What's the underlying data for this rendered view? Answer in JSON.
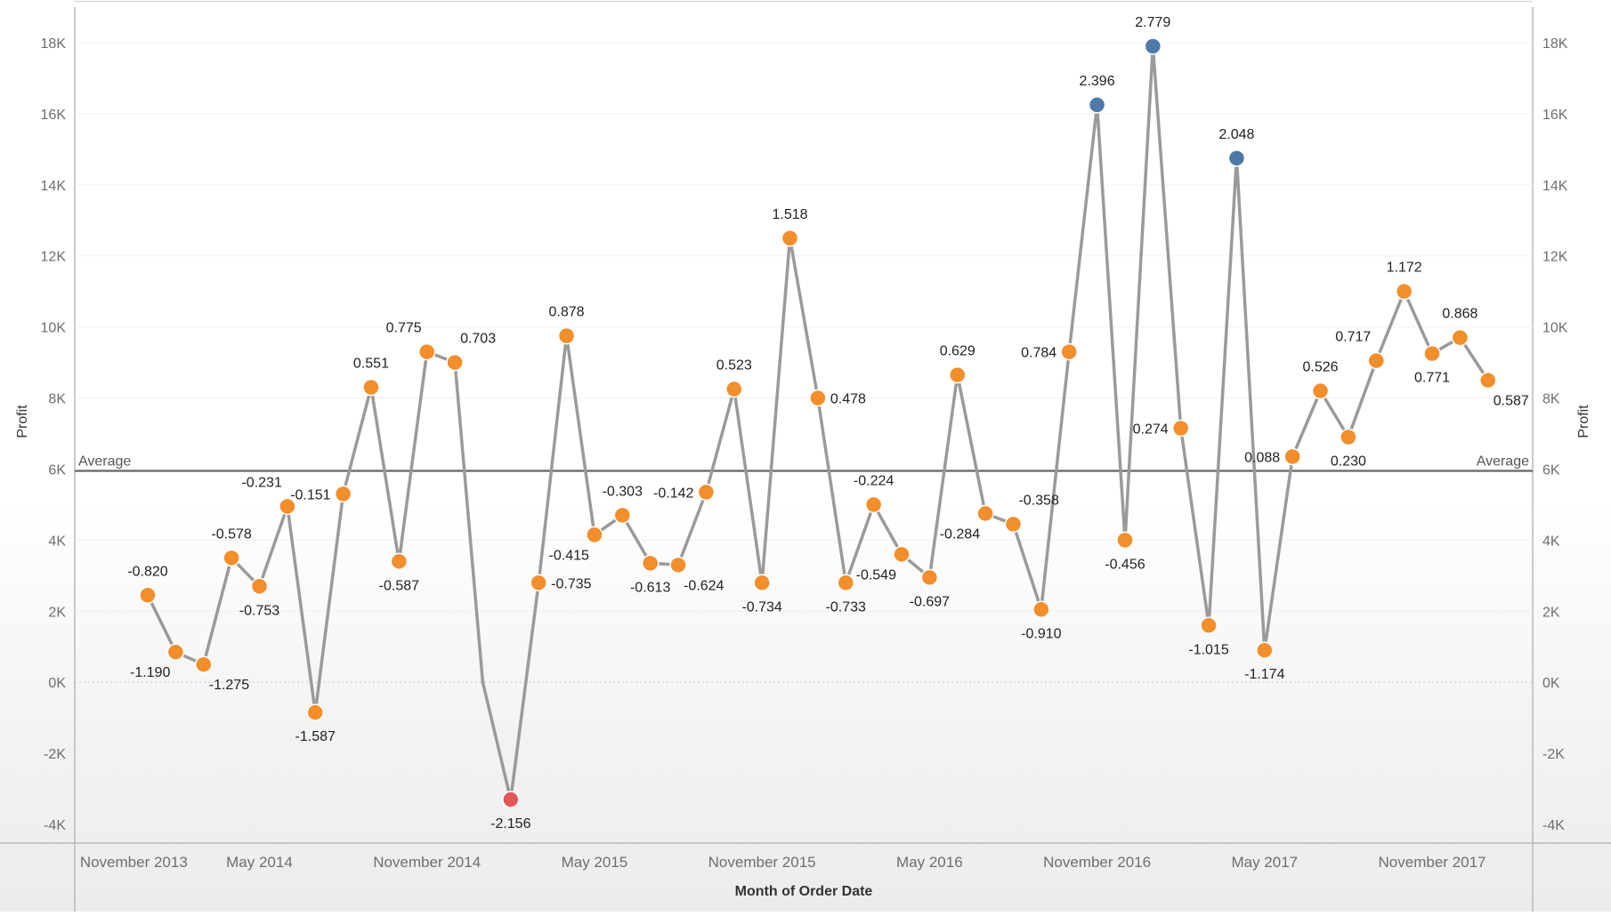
{
  "chart_data": {
    "type": "line",
    "title": "",
    "xlabel": "Month of Order Date",
    "ylabel": "Profit",
    "ylabel_right": "Profit",
    "ylim": [
      -4500,
      18700
    ],
    "y_ticks": [
      {
        "value": -4000,
        "label": "-4K"
      },
      {
        "value": -2000,
        "label": "-2K"
      },
      {
        "value": 0,
        "label": "0K"
      },
      {
        "value": 2000,
        "label": "2K"
      },
      {
        "value": 4000,
        "label": "4K"
      },
      {
        "value": 6000,
        "label": "6K"
      },
      {
        "value": 8000,
        "label": "8K"
      },
      {
        "value": 10000,
        "label": "10K"
      },
      {
        "value": 12000,
        "label": "12K"
      },
      {
        "value": 14000,
        "label": "14K"
      },
      {
        "value": 16000,
        "label": "16K"
      },
      {
        "value": 18000,
        "label": "18K"
      }
    ],
    "x_ticks": [
      {
        "index": -0.5,
        "label": "November 2013"
      },
      {
        "index": 4,
        "label": "May 2014"
      },
      {
        "index": 10,
        "label": "November 2014"
      },
      {
        "index": 16,
        "label": "May 2015"
      },
      {
        "index": 22,
        "label": "November 2015"
      },
      {
        "index": 28,
        "label": "May 2016"
      },
      {
        "index": 34,
        "label": "November 2016"
      },
      {
        "index": 40,
        "label": "May 2017"
      },
      {
        "index": 46,
        "label": "November 2017"
      }
    ],
    "average": {
      "value": 5950,
      "label": "Average"
    },
    "colors": {
      "line": "#9a9a9a",
      "normal": "#f28e2b",
      "high": "#4e79a7",
      "low": "#e15759",
      "average_line": "#555555"
    },
    "points": [
      {
        "value": 2450,
        "label": "-0.820",
        "cls": "normal",
        "pos": "above"
      },
      {
        "value": 850,
        "label": "-1.190",
        "cls": "normal",
        "pos": "belowleft"
      },
      {
        "value": 500,
        "label": "-1.275",
        "cls": "normal",
        "pos": "belowright"
      },
      {
        "value": 3500,
        "label": "-0.578",
        "cls": "normal",
        "pos": "above"
      },
      {
        "value": 2700,
        "label": "-0.753",
        "cls": "normal",
        "pos": "below"
      },
      {
        "value": 4950,
        "label": "-0.231",
        "cls": "normal",
        "pos": "aboveleft"
      },
      {
        "value": -850,
        "label": "-1.587",
        "cls": "normal",
        "pos": "below"
      },
      {
        "value": 5300,
        "label": "-0.151",
        "cls": "normal",
        "pos": "left"
      },
      {
        "value": 8300,
        "label": "0.551",
        "cls": "normal",
        "pos": "above"
      },
      {
        "value": 3400,
        "label": "-0.587",
        "cls": "normal",
        "pos": "below"
      },
      {
        "value": 9300,
        "label": "0.775",
        "cls": "normal",
        "pos": "aboveleft"
      },
      {
        "value": 9000,
        "label": "0.703",
        "cls": "normal",
        "pos": "aboveright"
      },
      {
        "value": 0,
        "label": "",
        "cls": "none",
        "pos": "none"
      },
      {
        "value": -3300,
        "label": "-2.156",
        "cls": "low",
        "pos": "below"
      },
      {
        "value": 2800,
        "label": "-0.735",
        "cls": "normal",
        "pos": "right"
      },
      {
        "value": 9750,
        "label": "0.878",
        "cls": "normal",
        "pos": "above"
      },
      {
        "value": 4150,
        "label": "-0.415",
        "cls": "normal",
        "pos": "belowleft"
      },
      {
        "value": 4700,
        "label": "-0.303",
        "cls": "normal",
        "pos": "above"
      },
      {
        "value": 3350,
        "label": "-0.613",
        "cls": "normal",
        "pos": "below"
      },
      {
        "value": 3300,
        "label": "-0.624",
        "cls": "normal",
        "pos": "belowright"
      },
      {
        "value": 5350,
        "label": "-0.142",
        "cls": "normal",
        "pos": "left"
      },
      {
        "value": 8250,
        "label": "0.523",
        "cls": "normal",
        "pos": "above"
      },
      {
        "value": 2800,
        "label": "-0.734",
        "cls": "normal",
        "pos": "below"
      },
      {
        "value": 12500,
        "label": "1.518",
        "cls": "normal",
        "pos": "above"
      },
      {
        "value": 8000,
        "label": "0.478",
        "cls": "normal",
        "pos": "right"
      },
      {
        "value": 2800,
        "label": "-0.733",
        "cls": "normal",
        "pos": "below"
      },
      {
        "value": 5000,
        "label": "-0.224",
        "cls": "normal",
        "pos": "above"
      },
      {
        "value": 3600,
        "label": "-0.549",
        "cls": "normal",
        "pos": "belowleft"
      },
      {
        "value": 2950,
        "label": "-0.697",
        "cls": "normal",
        "pos": "below"
      },
      {
        "value": 8650,
        "label": "0.629",
        "cls": "normal",
        "pos": "above"
      },
      {
        "value": 4750,
        "label": "-0.284",
        "cls": "normal",
        "pos": "belowleft"
      },
      {
        "value": 4450,
        "label": "-0.358",
        "cls": "normal",
        "pos": "aboveright"
      },
      {
        "value": 2050,
        "label": "-0.910",
        "cls": "normal",
        "pos": "below"
      },
      {
        "value": 9300,
        "label": "0.784",
        "cls": "normal",
        "pos": "left"
      },
      {
        "value": 16250,
        "label": "2.396",
        "cls": "high",
        "pos": "above"
      },
      {
        "value": 4000,
        "label": "-0.456",
        "cls": "normal",
        "pos": "below"
      },
      {
        "value": 17900,
        "label": "2.779",
        "cls": "high",
        "pos": "above"
      },
      {
        "value": 7150,
        "label": "0.274",
        "cls": "normal",
        "pos": "left"
      },
      {
        "value": 1600,
        "label": "-1.015",
        "cls": "normal",
        "pos": "below"
      },
      {
        "value": 14750,
        "label": "2.048",
        "cls": "high",
        "pos": "above"
      },
      {
        "value": 900,
        "label": "-1.174",
        "cls": "normal",
        "pos": "below"
      },
      {
        "value": 6350,
        "label": "0.088",
        "cls": "normal",
        "pos": "left"
      },
      {
        "value": 8200,
        "label": "0.526",
        "cls": "normal",
        "pos": "above"
      },
      {
        "value": 6900,
        "label": "0.230",
        "cls": "normal",
        "pos": "below"
      },
      {
        "value": 9050,
        "label": "0.717",
        "cls": "normal",
        "pos": "aboveleft"
      },
      {
        "value": 11000,
        "label": "1.172",
        "cls": "normal",
        "pos": "above"
      },
      {
        "value": 9250,
        "label": "0.771",
        "cls": "normal",
        "pos": "below"
      },
      {
        "value": 9700,
        "label": "0.868",
        "cls": "normal",
        "pos": "above"
      },
      {
        "value": 8500,
        "label": "0.587",
        "cls": "normal",
        "pos": "belowright"
      }
    ]
  }
}
